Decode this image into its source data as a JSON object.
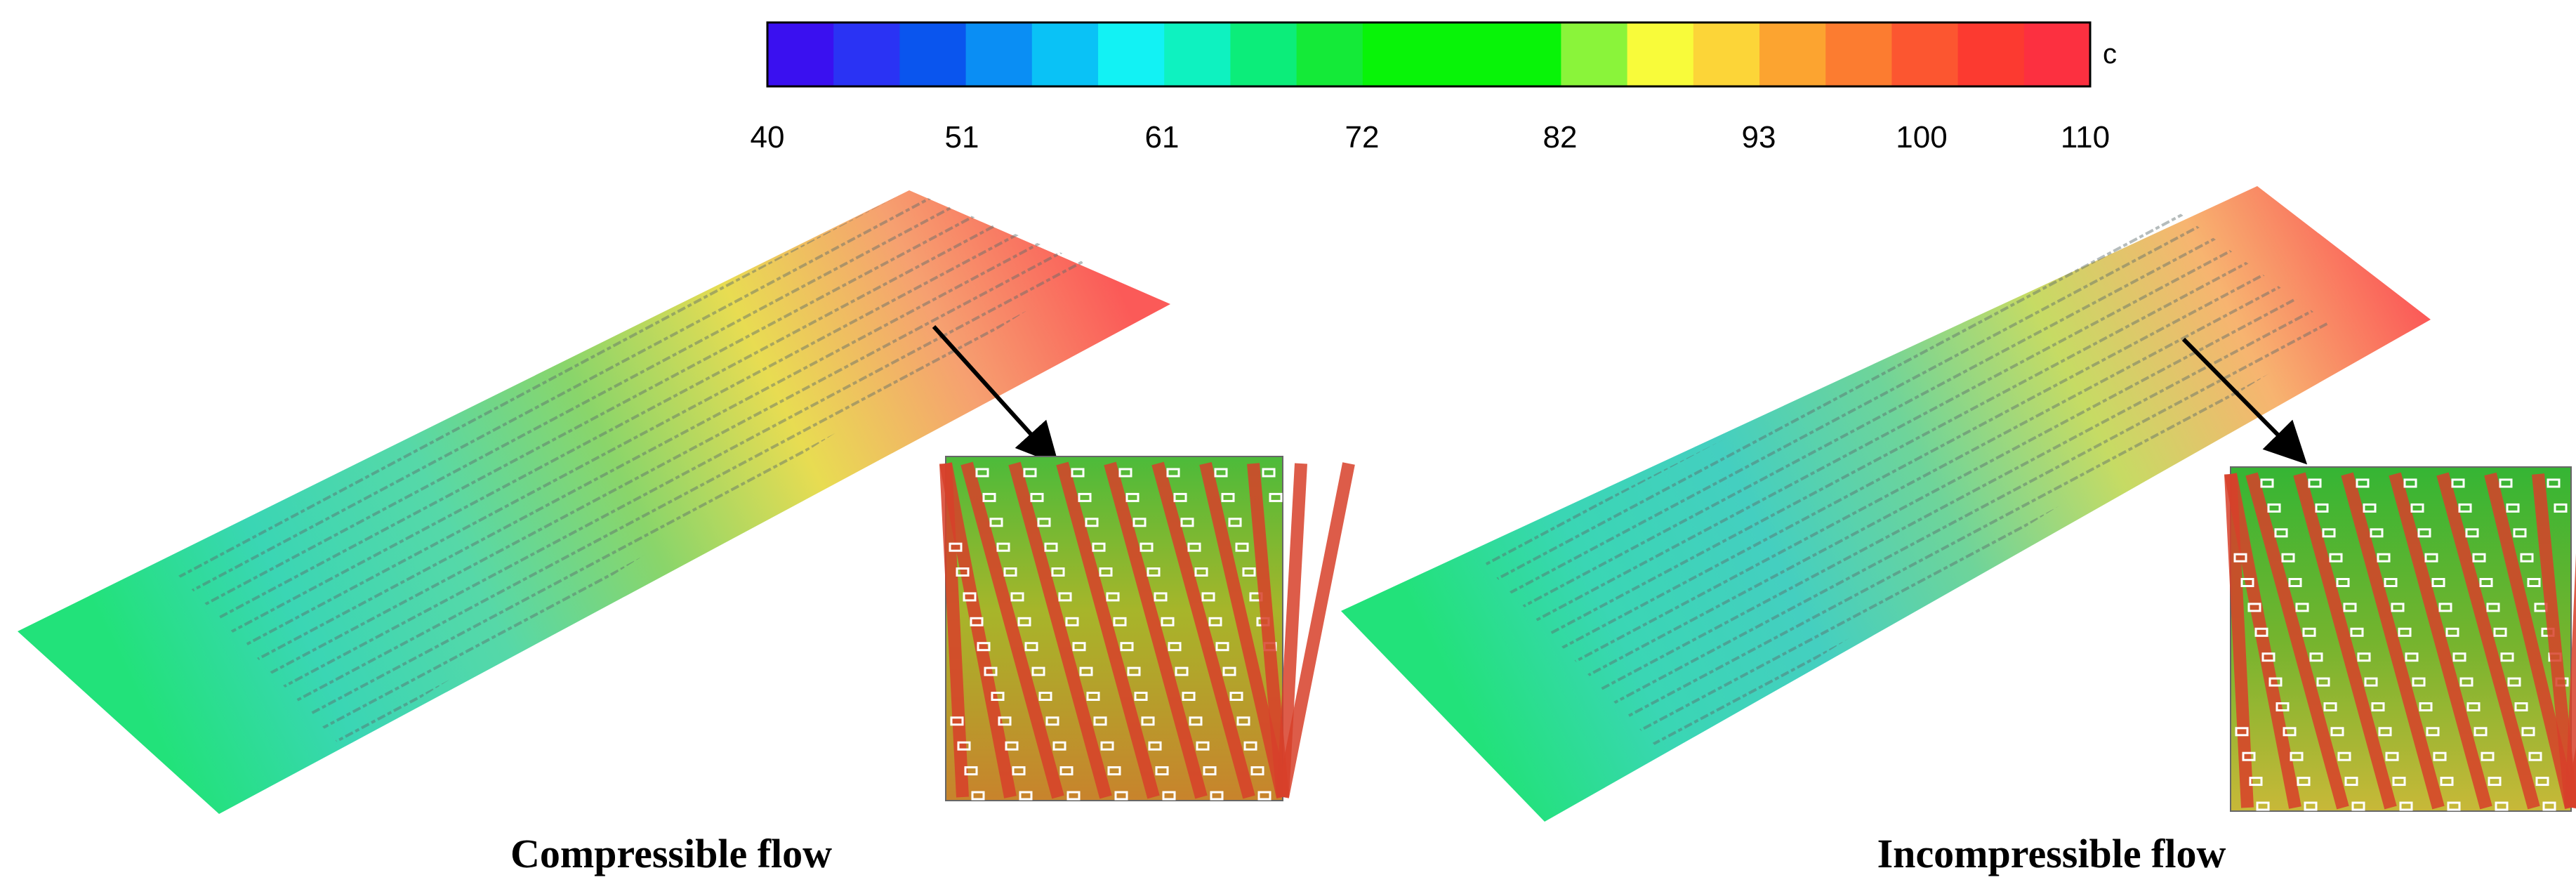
{
  "colorbar": {
    "unit": "c",
    "min": 40,
    "max": 110,
    "tick_labels": [
      "40",
      "51",
      "61",
      "72",
      "82",
      "93",
      "100",
      "110"
    ],
    "swatches": [
      "#3a10f0",
      "#2a33f4",
      "#0a55ee",
      "#0a8ef4",
      "#0ac2f6",
      "#12f2f4",
      "#0ef2c0",
      "#0ced7a",
      "#14ea38",
      "#08f408",
      "#08f408",
      "#08f408",
      "#8af43a",
      "#f8fb3a",
      "#fcd538",
      "#fca430",
      "#fc7c30",
      "#fc5630",
      "#fc3a30",
      "#fc3040"
    ]
  },
  "panels": [
    {
      "caption": "Compressible flow",
      "gradient": [
        "#22e27a",
        "#3ad6b4",
        "#56d8a8",
        "#8ad56a",
        "#e8dc52",
        "#f6a070",
        "#fb5a58"
      ]
    },
    {
      "caption": "Incompressible flow",
      "gradient": [
        "#22e27a",
        "#3ad6b4",
        "#44cfc0",
        "#6ed49a",
        "#c6db64",
        "#f7b470",
        "#fb5a58"
      ]
    }
  ]
}
